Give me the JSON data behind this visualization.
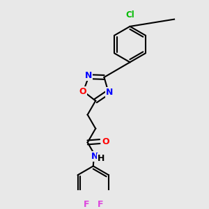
{
  "bg_color": "#e8e8e8",
  "bond_color": "#000000",
  "N_color": "#0000ff",
  "O_color": "#ff0000",
  "Cl_color": "#00bb00",
  "F_color": "#dd44dd",
  "lw": 1.5,
  "fs": 8.5,
  "xlim": [
    0,
    10
  ],
  "ylim": [
    0,
    10
  ],
  "figsize": [
    3.0,
    3.0
  ],
  "dpi": 100
}
